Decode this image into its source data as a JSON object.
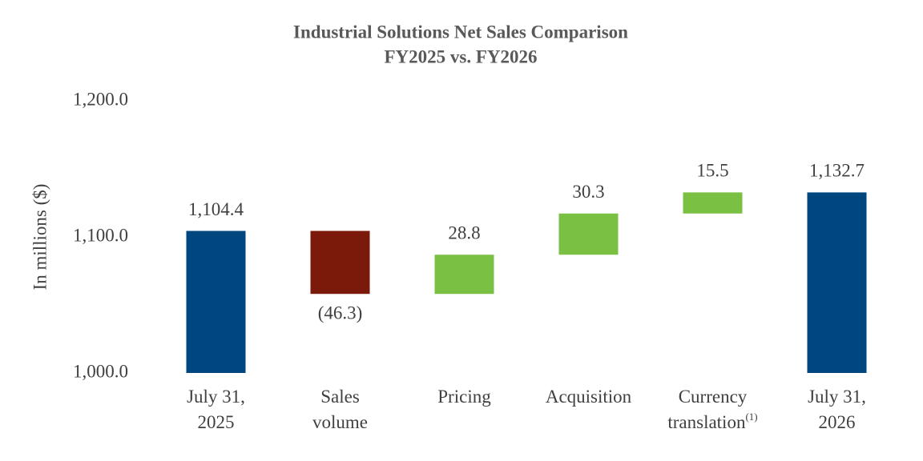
{
  "chart_data": {
    "type": "waterfall",
    "title": [
      "Industrial Solutions Net Sales Comparison",
      "FY2025 vs. FY2026"
    ],
    "ylabel": "In millions ($)",
    "categories": [
      [
        "July 31,",
        "2025"
      ],
      [
        "Sales",
        "volume"
      ],
      [
        "Pricing"
      ],
      [
        "Acquisition"
      ],
      [
        "Currency",
        "translation"
      ],
      [
        "July 31,",
        "2026"
      ]
    ],
    "category_notes": [
      null,
      null,
      null,
      null,
      "(1)",
      null
    ],
    "kinds": [
      "total",
      "delta",
      "delta",
      "delta",
      "delta",
      "total"
    ],
    "values": [
      1104.4,
      -46.3,
      28.8,
      30.3,
      15.5,
      1132.7
    ],
    "value_labels": [
      "1,104.4",
      "(46.3)",
      "28.8",
      "30.3",
      "15.5",
      "1,132.7"
    ],
    "colors": {
      "total": "#00467f",
      "increase": "#7ac143",
      "decrease": "#7b1a0a"
    },
    "ylim": [
      1000,
      1200
    ],
    "yticks": [
      {
        "value": 1000,
        "label": "1,000.0"
      },
      {
        "value": 1100,
        "label": "1,100.0"
      },
      {
        "value": 1200,
        "label": "1,200.0"
      }
    ],
    "grid": false
  }
}
